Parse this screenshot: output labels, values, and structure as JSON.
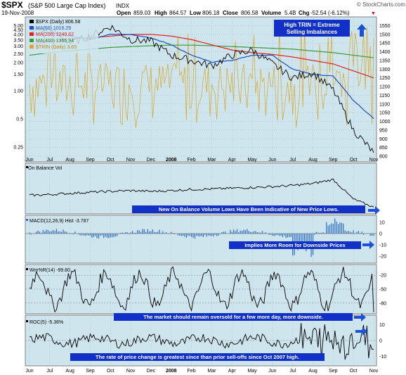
{
  "header": {
    "symbol": "$SPX",
    "name": "(S&P 500 Large Cap Index)",
    "exchange": "INDX",
    "date": "19-Nov-2008",
    "watermark": "© StockCharts.com",
    "open_label": "Open",
    "open_value": "859.03",
    "high_label": "High",
    "high_value": "864.57",
    "low_label": "Low",
    "low_value": "806.18",
    "close_label": "Close",
    "close_value": "806.58",
    "volume_label": "Volume",
    "volume_value": "5.4B",
    "chg_label": "Chg",
    "chg_value": "-52.54 (-6.12%)",
    "chg_marker": "▼"
  },
  "colors": {
    "panel_bg": "#cfe5ee",
    "price_line": "#000000",
    "ma50": "#1a4fbf",
    "ma200": "#e02020",
    "ma400": "#3a9a3a",
    "trin": "#d8a628",
    "annotation_fill": "#1030c8",
    "arrow_blue": "#1d4fd8",
    "macd_hist": "#2d6ec8",
    "wmr_oversold": "#9b5a4a"
  },
  "x_labels": [
    "Jun",
    "Jul",
    "Aug",
    "Sep",
    "Oct",
    "Nov",
    "Dec",
    "2008",
    "Feb",
    "Mar",
    "Apr",
    "May",
    "Jun",
    "Jul",
    "Aug",
    "Sep",
    "Oct",
    "Nov"
  ],
  "chart_data": [
    {
      "type": "line",
      "panel": "price",
      "legend": [
        {
          "name": "$SPX (Daily) 806.58",
          "color": "#000000"
        },
        {
          "name": "MA(50) 1016.29",
          "color": "#1a4fbf"
        },
        {
          "name": "MA(200) 1249.62",
          "color": "#e02020"
        },
        {
          "name": "MA(400) 1365.94",
          "color": "#3a9a3a"
        },
        {
          "name": "$TRIN (Daily) 3.65",
          "color": "#d8a628"
        }
      ],
      "left_axis_ticks": [
        "5.00",
        "4.50",
        "4.00",
        "3.50",
        "3.00",
        "2.50",
        "2.00",
        "1.50",
        "1.00",
        "0.5",
        "0.25"
      ],
      "right_axis_ticks": [
        "1550",
        "1500",
        "1450",
        "1400",
        "1350",
        "1300",
        "1250",
        "1200",
        "1150",
        "1100",
        "1050",
        "1000",
        "950",
        "900",
        "850",
        "800"
      ],
      "ylim_price": [
        800,
        1560
      ],
      "months": [
        "Jun 2007",
        "Jul",
        "Aug",
        "Sep",
        "Oct",
        "Nov",
        "Dec",
        "Jan 2008",
        "Feb",
        "Mar",
        "Apr",
        "May",
        "Jun",
        "Jul",
        "Aug",
        "Sep",
        "Oct",
        "Nov"
      ],
      "spx_monthly": [
        1520,
        1530,
        1450,
        1490,
        1545,
        1470,
        1460,
        1380,
        1350,
        1320,
        1380,
        1410,
        1330,
        1250,
        1280,
        1180,
        950,
        820
      ],
      "ma50_monthly": [
        1500,
        1510,
        1490,
        1470,
        1500,
        1500,
        1480,
        1440,
        1380,
        1340,
        1350,
        1380,
        1380,
        1300,
        1270,
        1260,
        1120,
        1016
      ],
      "ma200_monthly": [
        1440,
        1460,
        1475,
        1480,
        1490,
        1500,
        1500,
        1490,
        1470,
        1440,
        1410,
        1395,
        1385,
        1370,
        1350,
        1330,
        1290,
        1250
      ],
      "ma400_monthly": [
        1380,
        1395,
        1405,
        1415,
        1425,
        1430,
        1435,
        1438,
        1438,
        1435,
        1430,
        1425,
        1420,
        1415,
        1405,
        1395,
        1380,
        1366
      ],
      "trin_last": 3.65
    },
    {
      "type": "line",
      "panel": "obv",
      "legend": [
        {
          "name": "On Balance Vol",
          "color": "#000000"
        }
      ],
      "description_values_monthly": [
        0.4,
        0.42,
        0.45,
        0.48,
        0.5,
        0.52,
        0.5,
        0.52,
        0.55,
        0.56,
        0.58,
        0.6,
        0.62,
        0.65,
        0.7,
        0.8,
        0.3,
        0.1
      ]
    },
    {
      "type": "bar",
      "panel": "macd",
      "legend": [
        {
          "name": "MACD(12,26,9) Hist -3.787",
          "color": "#2d6ec8"
        }
      ],
      "y_ticks": [
        "10",
        "0",
        "-10",
        "-20"
      ],
      "ylim": [
        -25,
        15
      ]
    },
    {
      "type": "line",
      "panel": "williams",
      "legend": [
        {
          "name": "Wm%R(14) -99.80",
          "color": "#000000"
        }
      ],
      "y_ticks": [
        "-20",
        "-50",
        "-80"
      ],
      "ylim": [
        -100,
        0
      ]
    },
    {
      "type": "line",
      "panel": "roc",
      "legend": [
        {
          "name": "ROC(5) -5.36%",
          "color": "#000000"
        }
      ],
      "y_ticks": [
        "10",
        "0",
        "-10"
      ],
      "ylim": [
        -15,
        15
      ]
    }
  ],
  "annotations": {
    "trin": [
      "High TRIN = Extreme",
      "Selling Imbalances"
    ],
    "obv": "New On Balance Volume Lows Have Been Indicative of New Price Lows.",
    "macd": "Implies More Room for Downside Prices",
    "williams": "The market should remain oversold for a few more day, more downside.",
    "roc": "The rate of price change is greatest since than prior sell-offs since Oct 2007 high."
  }
}
